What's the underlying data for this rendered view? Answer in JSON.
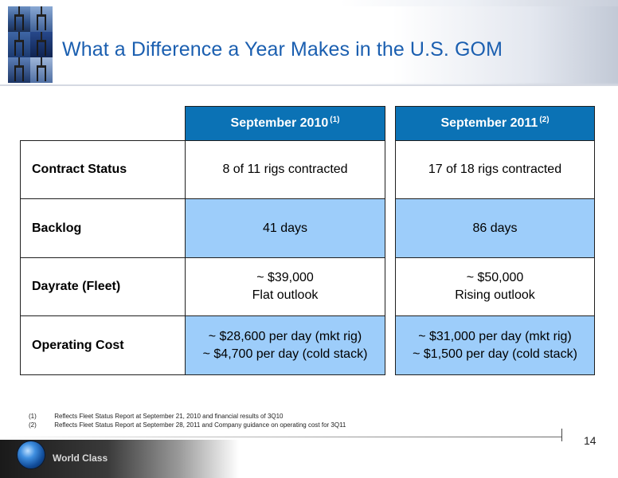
{
  "header": {
    "title": "What a Difference a Year Makes in the U.S. GOM"
  },
  "table": {
    "columns": [
      {
        "label": "September 2010",
        "note": "(1)"
      },
      {
        "label": "September 2011",
        "note": "(2)"
      }
    ],
    "rows": [
      {
        "label": "Contract Status",
        "col1": [
          "8 of 11 rigs contracted"
        ],
        "col2": [
          "17 of 18 rigs contracted"
        ]
      },
      {
        "label": "Backlog",
        "col1": [
          "41 days"
        ],
        "col2": [
          "86 days"
        ]
      },
      {
        "label": "Dayrate (Fleet)",
        "col1": [
          "~ $39,000",
          "Flat outlook"
        ],
        "col2": [
          "~ $50,000",
          "Rising outlook"
        ]
      },
      {
        "label": "Operating Cost",
        "col1": [
          "~ $28,600 per day (mkt rig)",
          "~ $4,700 per day (cold stack)"
        ],
        "col2": [
          "~ $31,000 per day (mkt rig)",
          "~ $1,500 per day (cold stack)"
        ]
      }
    ]
  },
  "footnotes": [
    {
      "num": "(1)",
      "text": "Reflects Fleet Status Report at September 21, 2010 and financial results of 3Q10"
    },
    {
      "num": "(2)",
      "text": "Reflects Fleet Status Report at September 28, 2011 and Company guidance on operating cost for 3Q11"
    }
  ],
  "footer": {
    "brand": "World Class",
    "page_number": "14"
  },
  "colors": {
    "title": "#1b5fb0",
    "column_header": "#0b72b5",
    "highlight_row": "#9dcdfa"
  },
  "icons": [
    "offshore-rig-photo",
    "globe-icon"
  ]
}
